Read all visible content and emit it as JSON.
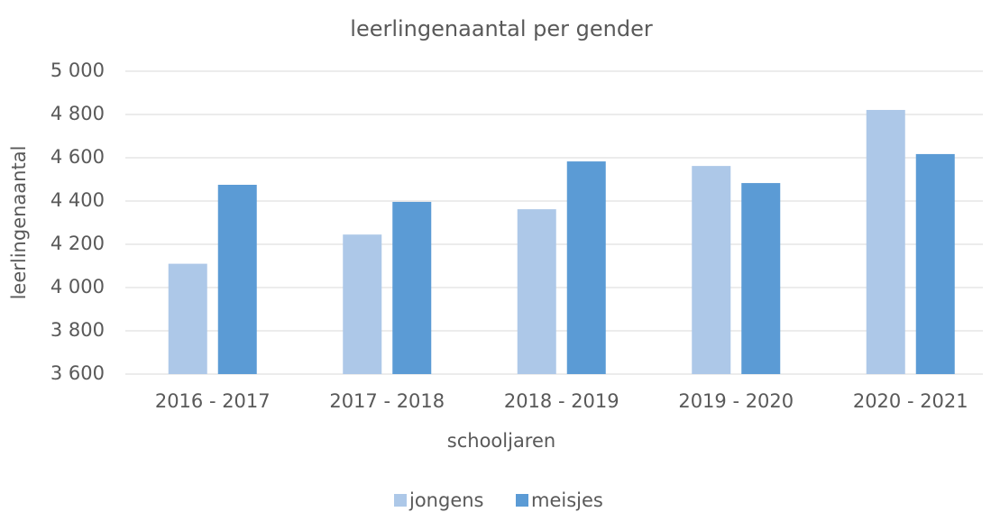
{
  "chart_data": {
    "type": "bar",
    "title": "leerlingenaantal per gender",
    "x_label": "schooljaren",
    "y_label": "leerlingenaantal",
    "categories": [
      "2016 - 2017",
      "2017 - 2018",
      "2018 - 2019",
      "2019 - 2020",
      "2020 - 2021"
    ],
    "series": [
      {
        "name": "jongens",
        "color": "#adc8e8",
        "values": [
          4110,
          4245,
          4362,
          4562,
          4821
        ]
      },
      {
        "name": "meisjes",
        "color": "#5b9bd5",
        "values": [
          4475,
          4396,
          4583,
          4483,
          4617
        ]
      }
    ],
    "ylim": [
      3600,
      5000
    ],
    "yticks": [
      {
        "value": 3600,
        "label": "3 600"
      },
      {
        "value": 3800,
        "label": "3 800"
      },
      {
        "value": 4000,
        "label": "4 000"
      },
      {
        "value": 4200,
        "label": "4 200"
      },
      {
        "value": 4400,
        "label": "4 400"
      },
      {
        "value": 4600,
        "label": "4 600"
      },
      {
        "value": 4800,
        "label": "4 800"
      },
      {
        "value": 5000,
        "label": "5 000"
      }
    ],
    "grid": true,
    "legend": "bottom"
  }
}
